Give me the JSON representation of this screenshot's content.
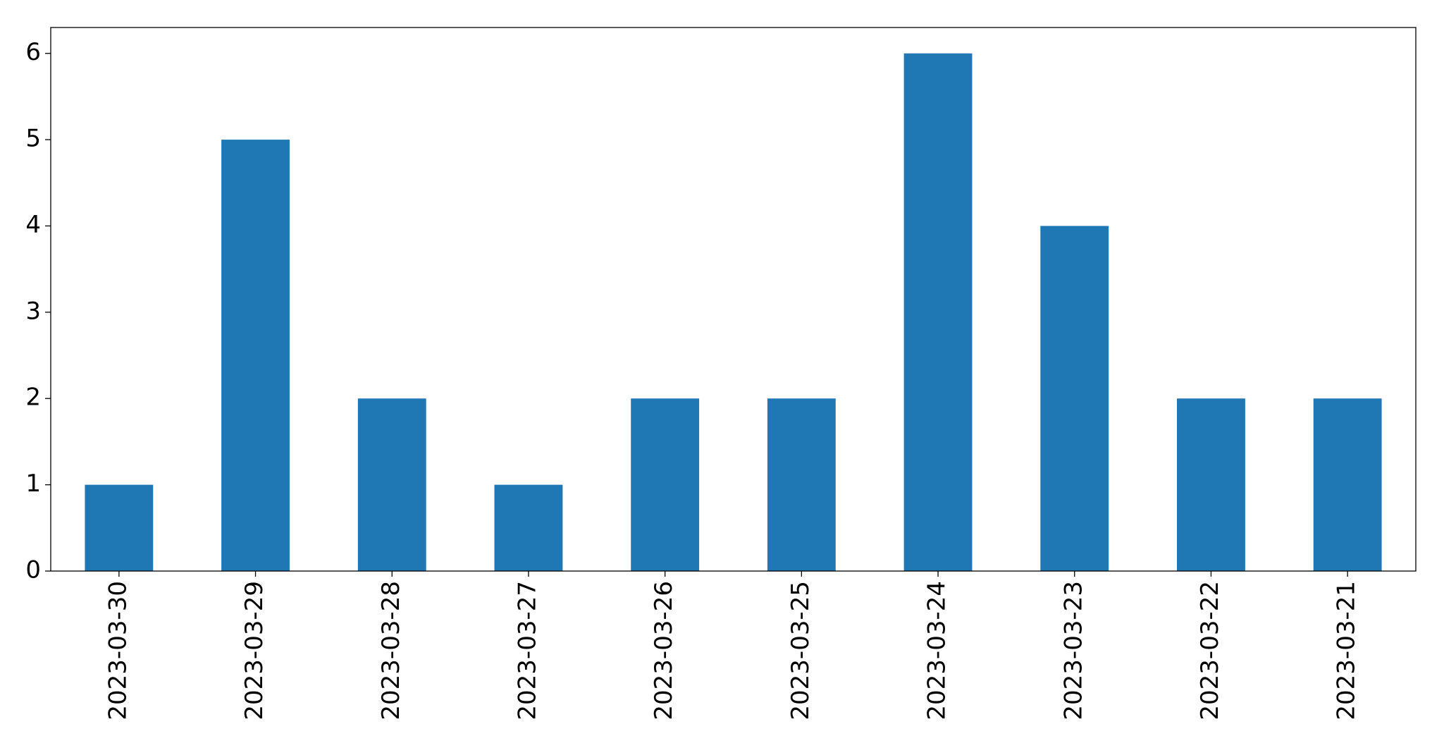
{
  "chart_data": {
    "type": "bar",
    "categories": [
      "2023-03-30",
      "2023-03-29",
      "2023-03-28",
      "2023-03-27",
      "2023-03-26",
      "2023-03-25",
      "2023-03-24",
      "2023-03-23",
      "2023-03-22",
      "2023-03-21"
    ],
    "values": [
      1,
      5,
      2,
      1,
      2,
      2,
      6,
      4,
      2,
      2
    ],
    "color": "#1f77b4",
    "ylim": [
      0,
      6.3
    ],
    "yticks": [
      0,
      1,
      2,
      3,
      4,
      5,
      6
    ],
    "grid": false
  }
}
